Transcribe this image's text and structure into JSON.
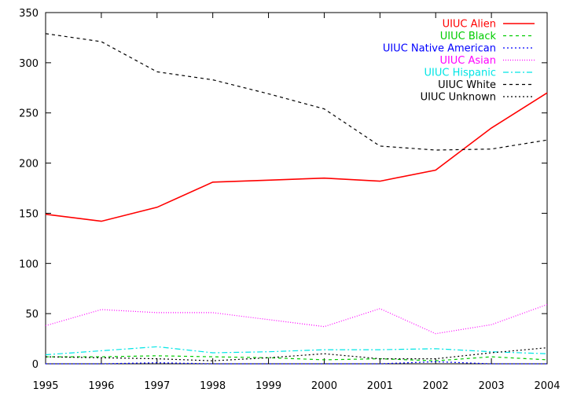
{
  "chart_data": {
    "type": "line",
    "title": "",
    "xlabel": "",
    "ylabel": "",
    "x": [
      1995,
      1996,
      1997,
      1998,
      1999,
      2000,
      2001,
      2002,
      2003,
      2004
    ],
    "xlim": [
      1995,
      2004
    ],
    "ylim": [
      0,
      350
    ],
    "xticks": [
      "1995",
      "1996",
      "1997",
      "1998",
      "1999",
      "2000",
      "2001",
      "2002",
      "2003",
      "2004"
    ],
    "yticks": [
      "0",
      "50",
      "100",
      "150",
      "200",
      "250",
      "300",
      "350"
    ],
    "grid": false,
    "legend_position": "top-right",
    "series": [
      {
        "name": "UIUC Alien",
        "color": "#ff0000",
        "dash": "solid",
        "values": [
          149,
          142,
          156,
          181,
          183,
          185,
          182,
          193,
          235,
          270
        ]
      },
      {
        "name": "UIUC Black",
        "color": "#00cc00",
        "dash": "dashed",
        "values": [
          7,
          7,
          8,
          7,
          6,
          4,
          5,
          3,
          7,
          4
        ]
      },
      {
        "name": "UIUC Native American",
        "color": "#0000ff",
        "dash": "dotted",
        "values": [
          0,
          0,
          1,
          0,
          0,
          0,
          0,
          2,
          0,
          0
        ]
      },
      {
        "name": "UIUC Asian",
        "color": "#ff00ff",
        "dash": "fine-dotted",
        "values": [
          38,
          54,
          51,
          51,
          44,
          37,
          55,
          30,
          39,
          59
        ]
      },
      {
        "name": "UIUC Hispanic",
        "color": "#00e5e5",
        "dash": "dash-dot",
        "values": [
          9,
          13,
          17,
          11,
          12,
          14,
          14,
          15,
          12,
          10
        ]
      },
      {
        "name": "UIUC White",
        "color": "#000000",
        "dash": "dashed",
        "values": [
          329,
          321,
          291,
          283,
          269,
          254,
          217,
          213,
          214,
          223
        ]
      },
      {
        "name": "UIUC Unknown",
        "color": "#000000",
        "dash": "dotted",
        "values": [
          7,
          6,
          5,
          3,
          6,
          10,
          5,
          5,
          11,
          16
        ]
      }
    ]
  }
}
